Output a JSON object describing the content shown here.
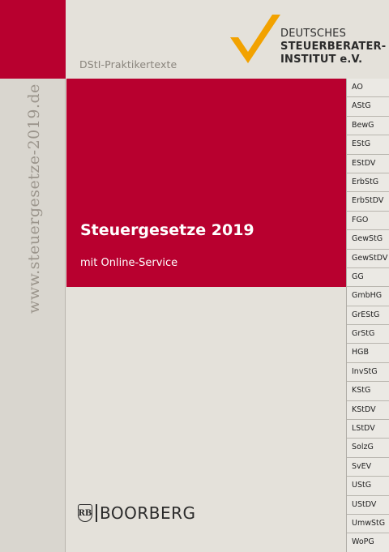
{
  "cover": {
    "spine_url": "www.steuergesetze-2019.de",
    "series": "DStI-Praktikertexte",
    "institute": {
      "line1": "DEUTSCHES",
      "line2": "STEUERBERATER-",
      "line3": "INSTITUT e.V."
    },
    "title": "Steuergesetze 2019",
    "subtitle": "mit Online-Service",
    "publisher": "BOORBERG",
    "publisher_mark": "RB",
    "tabs": [
      "AO",
      "AStG",
      "BewG",
      "EStG",
      "EStDV",
      "ErbStG",
      "ErbStDV",
      "FGO",
      "GewStG",
      "GewStDV",
      "GG",
      "GmbHG",
      "GrEStG",
      "GrStG",
      "HGB",
      "InvStG",
      "KStG",
      "KStDV",
      "LStDV",
      "SolzG",
      "SvEV",
      "UStG",
      "UStDV",
      "UmwStG",
      "WoPG"
    ],
    "colors": {
      "accent_red": "#b8002f",
      "checkmark_orange": "#f2a200",
      "background": "#e4e1da"
    },
    "icons": [
      "checkmark-logo-icon",
      "boorberg-crest-icon"
    ]
  }
}
